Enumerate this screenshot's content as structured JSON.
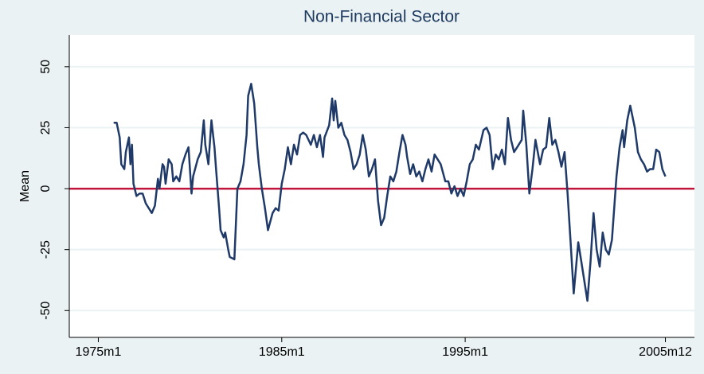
{
  "chart_data": {
    "type": "line",
    "title": "Non-Financial Sector",
    "y_label": "Mean",
    "x": [
      "1975m11",
      "1976m1",
      "1976m3",
      "1976m4",
      "1976m6",
      "1976m7",
      "1976m9",
      "1976m10",
      "1976m11",
      "1976m12",
      "1977m2",
      "1977m4",
      "1977m6",
      "1977m8",
      "1977m10",
      "1977m12",
      "1978m2",
      "1978m4",
      "1978m5",
      "1978m7",
      "1978m8",
      "1978m9",
      "1978m11",
      "1979m1",
      "1979m2",
      "1979m4",
      "1979m6",
      "1979m8",
      "1979m10",
      "1979m12",
      "1980m2",
      "1980m3",
      "1980m6",
      "1980m8",
      "1980m10",
      "1980m11",
      "1981m1",
      "1981m3",
      "1981m5",
      "1981m6",
      "1981m8",
      "1981m9",
      "1981m11",
      "1981m12",
      "1982m2",
      "1982m3",
      "1982m6",
      "1982m8",
      "1982m10",
      "1982m12",
      "1983m2",
      "1983m3",
      "1983m5",
      "1983m7",
      "1983m9",
      "1983m10",
      "1983m12",
      "1984m2",
      "1984m4",
      "1984m7",
      "1984m9",
      "1984m11",
      "1985m1",
      "1985m3",
      "1985m5",
      "1985m7",
      "1985m9",
      "1985m11",
      "1986m1",
      "1986m3",
      "1986m5",
      "1986m8",
      "1986m10",
      "1986m12",
      "1987m2",
      "1987m4",
      "1987m5",
      "1987m8",
      "1987m10",
      "1987m11",
      "1987m12",
      "1988m2",
      "1988m4",
      "1988m6",
      "1988m8",
      "1988m10",
      "1988m12",
      "1989m2",
      "1989m4",
      "1989m6",
      "1989m8",
      "1989m10",
      "1989m12",
      "1990m2",
      "1990m4",
      "1990m6",
      "1990m8",
      "1990m10",
      "1990m12",
      "1991m2",
      "1991m4",
      "1991m6",
      "1991m8",
      "1991m10",
      "1991m11",
      "1992m1",
      "1992m3",
      "1992m5",
      "1992m7",
      "1992m9",
      "1992m11",
      "1993m1",
      "1993m3",
      "1993m5",
      "1993m7",
      "1993m9",
      "1993m12",
      "1994m2",
      "1994m4",
      "1994m6",
      "1994m8",
      "1994m10",
      "1994m12",
      "1995m2",
      "1995m4",
      "1995m6",
      "1995m8",
      "1995m10",
      "1996m1",
      "1996m3",
      "1996m5",
      "1996m7",
      "1996m9",
      "1996m11",
      "1997m1",
      "1997m3",
      "1997m5",
      "1997m7",
      "1997m9",
      "1997m11",
      "1998m2",
      "1998m3",
      "1998m5",
      "1998m7",
      "1998m9",
      "1998m11",
      "1999m2",
      "1999m4",
      "1999m6",
      "1999m8",
      "1999m10",
      "1999m12",
      "2000m2",
      "2000m4",
      "2000m6",
      "2000m8",
      "2000m10",
      "2000m12",
      "2001m3",
      "2001m5",
      "2001m7",
      "2001m9",
      "2001m11",
      "2002m1",
      "2002m3",
      "2002m5",
      "2002m7",
      "2002m9",
      "2002m11",
      "2003m1",
      "2003m4",
      "2003m6",
      "2003m8",
      "2003m9",
      "2003m11",
      "2004m1",
      "2004m4",
      "2004m6",
      "2004m8",
      "2004m10",
      "2004m12",
      "2005m2",
      "2005m4",
      "2005m6",
      "2005m8",
      "2005m10",
      "2005m12"
    ],
    "series": [
      {
        "name": "Mean",
        "color": "#1f3a68",
        "values": [
          27,
          27,
          21,
          10,
          8,
          15,
          21,
          10,
          18,
          2,
          -3,
          -2,
          -2,
          -6,
          -8,
          -10,
          -7,
          4,
          0,
          10,
          9,
          2,
          12,
          10,
          3,
          5,
          3,
          10,
          14,
          17,
          -2,
          5,
          12,
          15,
          28,
          18,
          10,
          28,
          17,
          8,
          -8,
          -17,
          -20,
          -18,
          -25,
          -28,
          -29,
          0,
          3,
          10,
          22,
          38,
          43,
          35,
          17,
          10,
          0,
          -8,
          -17,
          -10,
          -8,
          -9,
          2,
          8,
          17,
          10,
          18,
          14,
          22,
          23,
          22,
          18,
          22,
          17,
          22,
          13,
          21,
          26,
          37,
          28,
          36,
          25,
          27,
          22,
          20,
          15,
          8,
          10,
          14,
          22,
          16,
          5,
          8,
          12,
          -5,
          -15,
          -12,
          -3,
          5,
          3,
          7,
          15,
          22,
          18,
          13,
          6,
          10,
          5,
          7,
          3,
          8,
          12,
          7,
          14,
          12,
          10,
          3,
          3,
          -2,
          1,
          -3,
          0,
          -3,
          3,
          10,
          12,
          18,
          16,
          24,
          25,
          22,
          8,
          14,
          12,
          16,
          10,
          29,
          20,
          15,
          17,
          20,
          32,
          18,
          -2,
          8,
          20,
          10,
          16,
          17,
          29,
          18,
          20,
          15,
          9,
          15,
          -2,
          -22,
          -43,
          -22,
          -30,
          -38,
          -46,
          -30,
          -10,
          -25,
          -32,
          -18,
          -25,
          -27,
          -21,
          5,
          17,
          24,
          17,
          28,
          34,
          25,
          15,
          12,
          10,
          7,
          8,
          8,
          16,
          15,
          8,
          5
        ]
      }
    ],
    "yline": {
      "value": 0,
      "color": "#c0143c"
    },
    "xlim": [
      "1973m6",
      "2007m7"
    ],
    "xticks": [
      "1975m1",
      "1985m1",
      "1995m1",
      "2005m12"
    ],
    "ylim": [
      -61,
      63
    ],
    "yticks": [
      -50,
      -25,
      0,
      25,
      50
    ],
    "grid": true
  }
}
